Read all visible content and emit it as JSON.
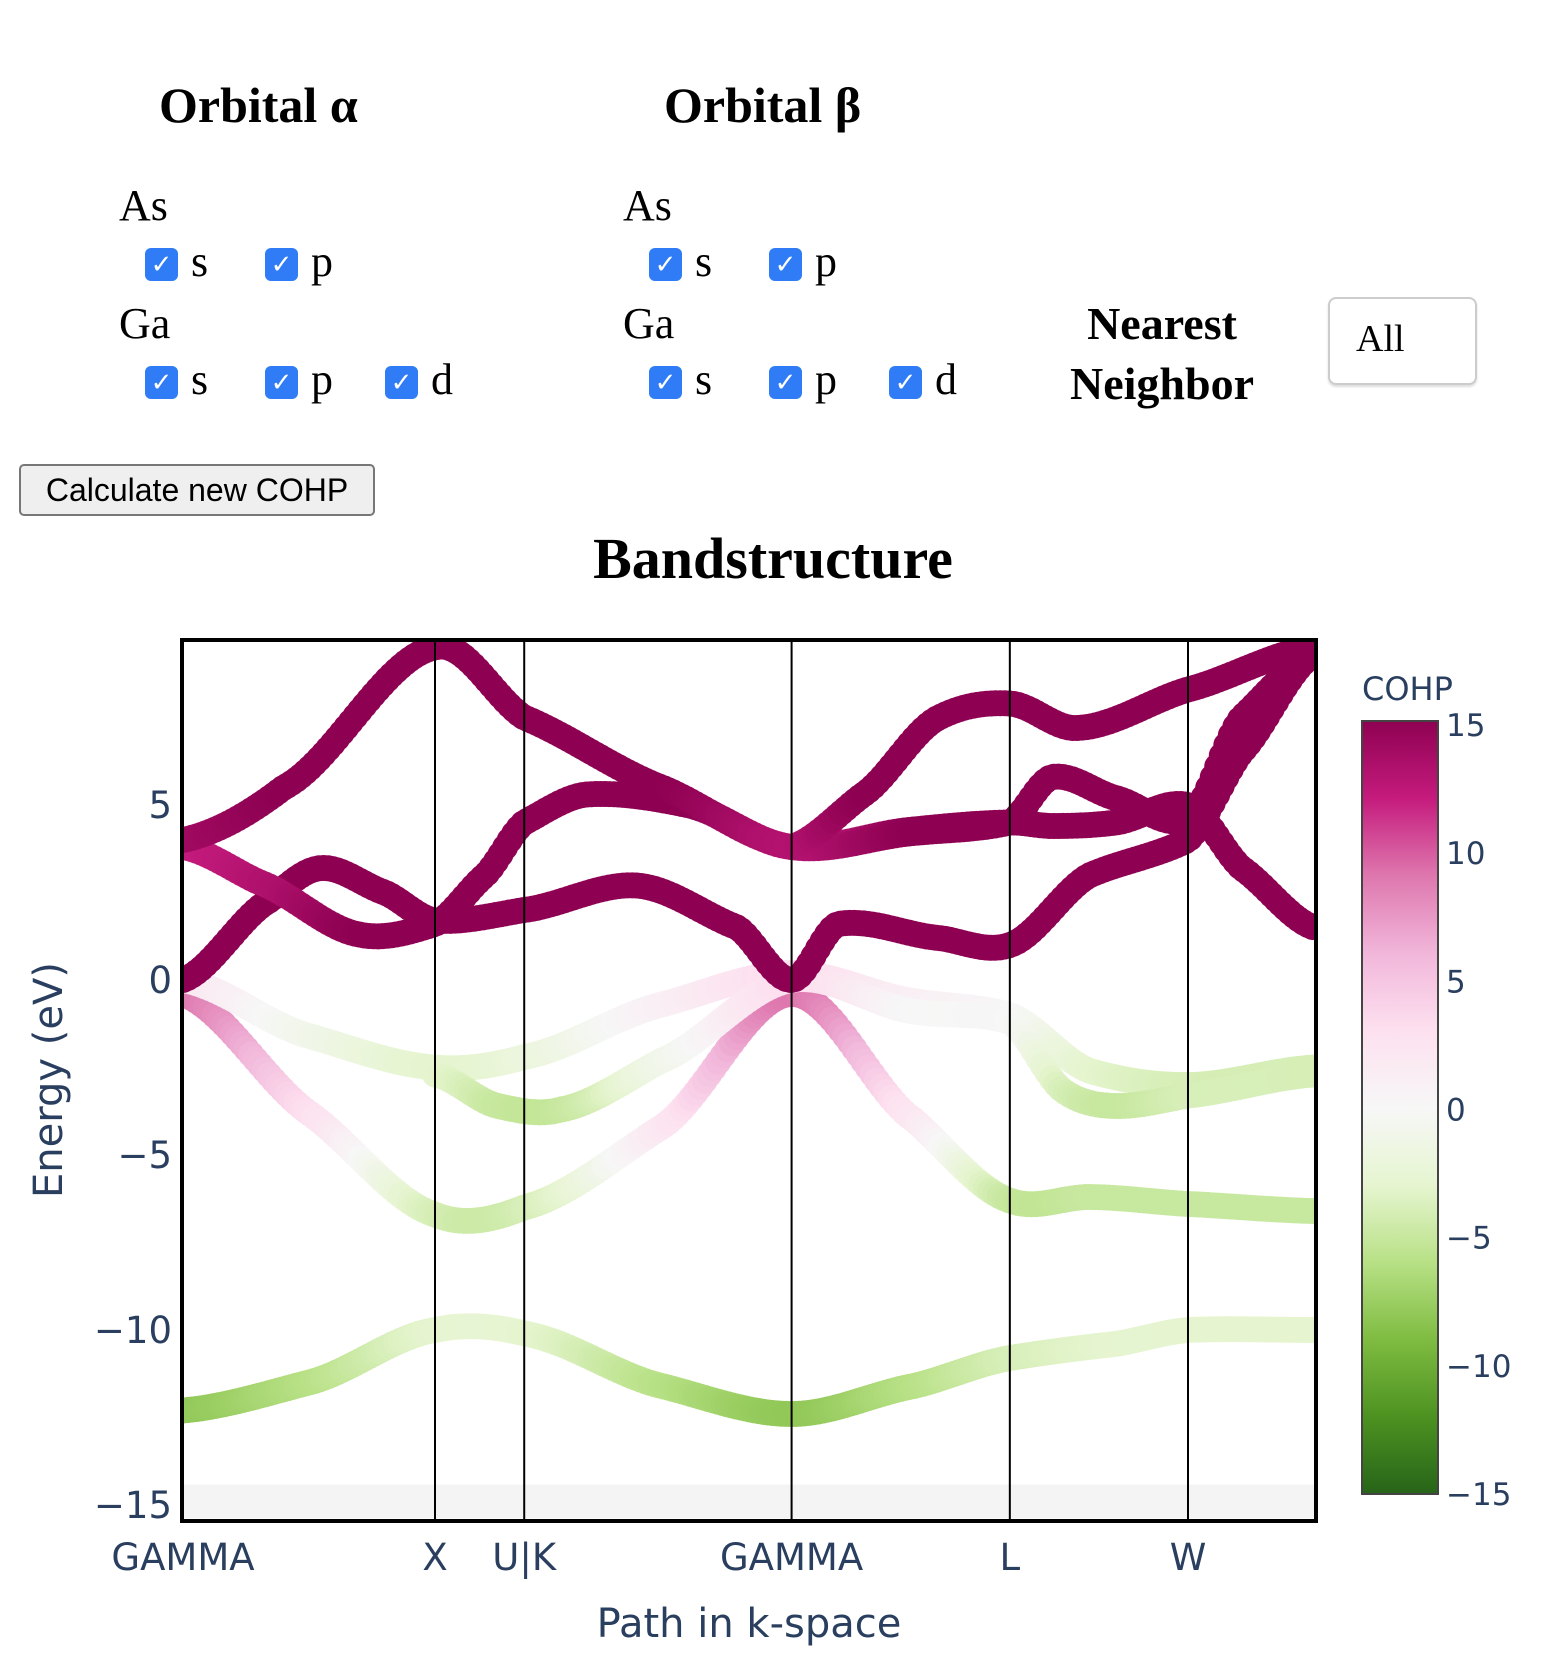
{
  "alpha": {
    "title": "Orbital α",
    "as_label": "As",
    "as_orbitals": [
      "s",
      "p"
    ],
    "ga_label": "Ga",
    "ga_orbitals": [
      "s",
      "p",
      "d"
    ],
    "checked": true
  },
  "beta": {
    "title": "Orbital β",
    "as_label": "As",
    "as_orbitals": [
      "s",
      "p"
    ],
    "ga_label": "Ga",
    "ga_orbitals": [
      "s",
      "p",
      "d"
    ],
    "checked": true
  },
  "nearest_neighbor": {
    "label_line1": "Nearest",
    "label_line2": "Neighbor",
    "value": "All"
  },
  "calculate_button": "Calculate new COHP",
  "checkmark": "✓",
  "chart_data": {
    "type": "scatter",
    "title": "Bandstructure",
    "xlabel": "Path in k-space",
    "ylabel": "Energy (eV)",
    "ylim": [
      -15.5,
      9.75
    ],
    "xlim": [
      0,
      4.488
    ],
    "yticks": [
      5,
      0,
      -5,
      -10,
      -15
    ],
    "ytick_labels": [
      "5",
      "0",
      "−5",
      "−10",
      "−15"
    ],
    "xticks": [
      0,
      1,
      1.354,
      2.415,
      3.281,
      3.988
    ],
    "xtick_labels": [
      "GAMMA",
      "X",
      "U|K",
      "GAMMA",
      "L",
      "W"
    ],
    "grid": false,
    "colorbar": {
      "title": "COHP",
      "range": [
        -15,
        15
      ],
      "ticks": [
        15,
        10,
        5,
        0,
        -5,
        -10,
        -15
      ],
      "tick_labels": [
        "15",
        "10",
        "5",
        "0",
        "−5",
        "−10",
        "−15"
      ],
      "colorscale": "PiYG (15 = magenta #8e0152, 0 = #f7f7f7, −15 = green #276419)"
    },
    "bands": [
      {
        "k": [
          0,
          4.488
        ],
        "E": [
          -14.9,
          -14.9
        ],
        "cohp": [
          0,
          0
        ]
      },
      {
        "k": [
          0,
          0.5,
          1,
          1.354,
          1.9,
          2.415,
          2.9,
          3.281,
          3.7,
          3.988,
          4.488
        ],
        "E": [
          -12.3,
          -11.5,
          -10.0,
          -10.1,
          -11.6,
          -12.4,
          -11.6,
          -10.8,
          -10.4,
          -10.0,
          -10.0
        ],
        "cohp": [
          -8,
          -6,
          -3,
          -3,
          -6,
          -8,
          -6,
          -4,
          -3,
          -3,
          -3
        ]
      },
      {
        "k": [
          0,
          0.5,
          1,
          1.354,
          1.9,
          2.415,
          2.9,
          3.281,
          3.6,
          3.988,
          4.488
        ],
        "E": [
          -0.4,
          -3.8,
          -6.7,
          -6.5,
          -4.2,
          -0.4,
          -4.0,
          -6.3,
          -6.2,
          -6.4,
          -6.6
        ],
        "cohp": [
          9,
          3,
          -4,
          -4,
          2,
          9,
          2,
          -5,
          -5,
          -5,
          -5
        ]
      },
      {
        "k": [
          0,
          0.5,
          1,
          1.354,
          1.9,
          2.415,
          2.9,
          3.281,
          3.6,
          3.988,
          4.488
        ],
        "E": [
          0,
          -1.6,
          -2.5,
          -2.2,
          -0.7,
          0.2,
          -0.6,
          -1.0,
          -2.6,
          -3.0,
          -2.5
        ],
        "cohp": [
          2,
          -1,
          -3,
          -2,
          1,
          3,
          1,
          0,
          -3,
          -4,
          -4
        ]
      },
      {
        "k": [
          1,
          1.25,
          1.5,
          1.9,
          2.415,
          2.9,
          3.281,
          3.5,
          3.7,
          3.988,
          4.488
        ],
        "E": [
          -2.7,
          -3.6,
          -3.7,
          -2.3,
          0,
          -0.9,
          -1.2,
          -3.2,
          -3.6,
          -3.3,
          -2.7
        ],
        "cohp": [
          -3,
          -5,
          -5,
          -1,
          3,
          0,
          0,
          -4,
          -5,
          -4,
          -4
        ]
      },
      {
        "k": [
          0,
          0.35,
          0.55,
          0.8,
          1,
          1.354,
          1.8,
          2.2,
          2.415,
          2.6,
          3.0,
          3.281,
          3.6,
          3.988,
          4.2,
          4.488
        ],
        "E": [
          0,
          2.3,
          3.2,
          2.5,
          1.7,
          2.0,
          2.7,
          1.5,
          0,
          1.6,
          1.2,
          1.0,
          3.0,
          4.0,
          6.5,
          9.3
        ],
        "cohp": [
          15,
          15,
          15,
          15,
          15,
          15,
          15,
          15,
          15,
          15,
          15,
          15,
          15,
          15,
          15,
          15
        ]
      },
      {
        "k": [
          0,
          0.3,
          0.7,
          1,
          1.2,
          1.354,
          1.6,
          2.0,
          2.415,
          2.9,
          3.281,
          3.45,
          3.7,
          3.988,
          4.2,
          4.488
        ],
        "E": [
          3.8,
          2.8,
          1.3,
          1.6,
          3.0,
          4.5,
          5.3,
          5.0,
          3.8,
          4.3,
          4.5,
          4.4,
          4.5,
          5.0,
          3.2,
          1.5
        ],
        "cohp": [
          12,
          13,
          15,
          15,
          15,
          15,
          15,
          15,
          12,
          15,
          15,
          15,
          15,
          15,
          15,
          15
        ]
      },
      {
        "k": [
          0,
          0.4,
          1,
          1.354,
          1.9,
          2.415,
          2.9,
          3.281,
          3.45,
          3.7,
          3.988,
          4.2,
          4.488
        ],
        "E": [
          4.0,
          5.5,
          9.5,
          7.5,
          5.5,
          3.8,
          4.2,
          4.5,
          5.8,
          5.2,
          4.6,
          7.5,
          9.3
        ],
        "cohp": [
          14,
          15,
          15,
          15,
          15,
          13,
          15,
          15,
          15,
          15,
          15,
          15,
          15
        ]
      },
      {
        "k": [
          2.415,
          2.7,
          3.0,
          3.281,
          3.55,
          3.988,
          4.488
        ],
        "E": [
          3.8,
          5.3,
          7.5,
          7.9,
          7.2,
          8.3,
          9.5
        ],
        "cohp": [
          13,
          15,
          15,
          15,
          15,
          15,
          15
        ]
      }
    ]
  }
}
